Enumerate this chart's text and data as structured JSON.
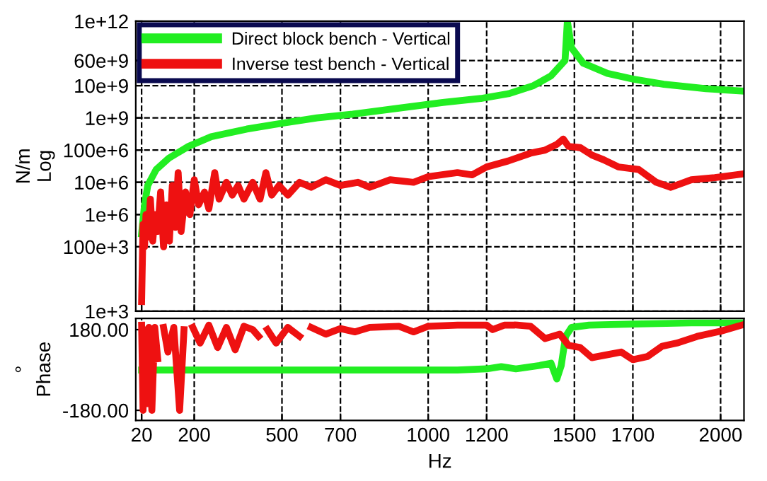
{
  "chart_data": [
    {
      "type": "line",
      "ylabel": "N/m\nLog",
      "log": "y",
      "xlim": [
        0,
        2080
      ],
      "xticks": [
        20,
        200,
        500,
        700,
        1000,
        1200,
        1500,
        1700,
        2000
      ],
      "ylim": [
        1000,
        1000000000000.0
      ],
      "yticks": [
        {
          "value": 1000000000000.0,
          "label": "1e+12"
        },
        {
          "value": 60000000000.0,
          "label": "60e+9"
        },
        {
          "value": 10000000000.0,
          "label": "10e+9"
        },
        {
          "value": 1000000000.0,
          "label": "1e+9"
        },
        {
          "value": 100000000.0,
          "label": "100e+6"
        },
        {
          "value": 10000000.0,
          "label": "10e+6"
        },
        {
          "value": 1000000.0,
          "label": "1e+6"
        },
        {
          "value": 100000.0,
          "label": "100e+3"
        },
        {
          "value": 1000,
          "label": "1e+3"
        }
      ],
      "grid": true,
      "legend": "top left",
      "tick_labels": "y",
      "line_style": "solid",
      "series": [
        {
          "name": "Direct block bench - Vertical",
          "color": "#22ee22",
          "x": [
            20,
            30,
            41,
            70,
            113,
            180,
            258,
            380,
            500,
            620,
            742,
            900,
            1050,
            1180,
            1274,
            1360,
            1420,
            1468,
            1476,
            1490,
            1530,
            1613,
            1700,
            1806,
            1950,
            2072
          ],
          "values": [
            250000.0,
            2000000.0,
            8000000.0,
            25000000.0,
            56000000.0,
            130000000.0,
            260000000.0,
            450000000.0,
            680000000.0,
            1000000000.0,
            1300000000.0,
            2000000000.0,
            3000000000.0,
            4000000000.0,
            5600000000.0,
            10000000000.0,
            20000000000.0,
            60000000000.0,
            1000000000000.0,
            150000000000.0,
            50000000000.0,
            24000000000.0,
            16000000000.0,
            11000000000.0,
            8000000000.0,
            6800000000.0
          ]
        },
        {
          "name": "Inverse test bench - Vertical",
          "color": "#ee1111",
          "x": [
            20,
            25,
            30,
            35,
            42,
            50,
            58,
            66,
            75,
            85,
            95,
            105,
            115,
            125,
            135,
            145,
            155,
            170,
            185,
            200,
            215,
            235,
            250,
            270,
            285,
            310,
            330,
            350,
            370,
            400,
            425,
            445,
            465,
            490,
            520,
            560,
            600,
            650,
            700,
            760,
            800,
            870,
            950,
            1000,
            1100,
            1150,
            1200,
            1274,
            1350,
            1400,
            1440,
            1462,
            1480,
            1520,
            1560,
            1600,
            1650,
            1720,
            1780,
            1830,
            1900,
            1980,
            2072
          ],
          "values": [
            2000.0,
            500000.0,
            100000.0,
            1000000.0,
            200000.0,
            3000000.0,
            150000.0,
            1000000.0,
            300000.0,
            5000000.0,
            100000.0,
            2000000.0,
            150000.0,
            8000000.0,
            400000.0,
            20000000.0,
            300000.0,
            5000000.0,
            1000000.0,
            12000000.0,
            2000000.0,
            5000000.0,
            1500000.0,
            20000000.0,
            3000000.0,
            10000000.0,
            4000000.0,
            8000000.0,
            3000000.0,
            10000000.0,
            3000000.0,
            20000000.0,
            4000000.0,
            8000000.0,
            4000000.0,
            10000000.0,
            7000000.0,
            12000000.0,
            8000000.0,
            10000000.0,
            7000000.0,
            12000000.0,
            10000000.0,
            15000000.0,
            20000000.0,
            17000000.0,
            30000000.0,
            46000000.0,
            80000000.0,
            100000000.0,
            150000000.0,
            220000000.0,
            130000000.0,
            120000000.0,
            70000000.0,
            50000000.0,
            30000000.0,
            25000000.0,
            10000000.0,
            7000000.0,
            12000000.0,
            14000000.0,
            18000000.0
          ]
        }
      ]
    },
    {
      "type": "line",
      "ylabel": "°\nPhase",
      "xlabel": "Hz",
      "xlim": [
        0,
        2080
      ],
      "xticks": [
        20,
        200,
        500,
        700,
        1000,
        1200,
        1500,
        1700,
        2000
      ],
      "ylim": [
        -225,
        230
      ],
      "yticks": [
        {
          "value": 180,
          "label": "180.00"
        },
        {
          "value": -180,
          "label": "-180.00"
        }
      ],
      "grid": "x",
      "line_style": "solid",
      "series": [
        {
          "color": "#22ee22",
          "x": [
            20,
            100,
            400,
            800,
            1100,
            1200,
            1250,
            1300,
            1380,
            1420,
            1440,
            1455,
            1470,
            1490,
            1550,
            1700,
            1900,
            2072
          ],
          "values": [
            0,
            0,
            0,
            0,
            0,
            5,
            15,
            5,
            20,
            30,
            -40,
            20,
            150,
            190,
            200,
            205,
            210,
            210
          ]
        },
        {
          "color": "#ee1111",
          "x": [
            20,
            25,
            30,
            35,
            40,
            45,
            55,
            65,
            75,
            85,
            95,
            110,
            130,
            150,
            165,
            180,
            195,
            220,
            250,
            280,
            310,
            340,
            370,
            400,
            420,
            430,
            440,
            450,
            480,
            520,
            560,
            590,
            600,
            650,
            700,
            750,
            800,
            900,
            950,
            1000,
            1100,
            1200,
            1220,
            1260,
            1285,
            1290,
            1300,
            1305,
            1350,
            1400,
            1450,
            1480,
            1520,
            1560,
            1620,
            1660,
            1700,
            1750,
            1800,
            1850,
            1920,
            2000,
            2072
          ],
          "values": [
            200,
            -180,
            180,
            60,
            -150,
            190,
            -180,
            190,
            50,
            null,
            190,
            80,
            190,
            -180,
            180,
            null,
            190,
            120,
            200,
            100,
            190,
            90,
            195,
            180,
            150,
            null,
            null,
            180,
            120,
            190,
            150,
            null,
            190,
            160,
            185,
            170,
            190,
            195,
            170,
            195,
            200,
            200,
            180,
            200,
            200,
            null,
            null,
            200,
            195,
            140,
            160,
            110,
            100,
            55,
            70,
            80,
            46,
            60,
            106,
            120,
            150,
            173,
            200
          ]
        }
      ]
    }
  ]
}
